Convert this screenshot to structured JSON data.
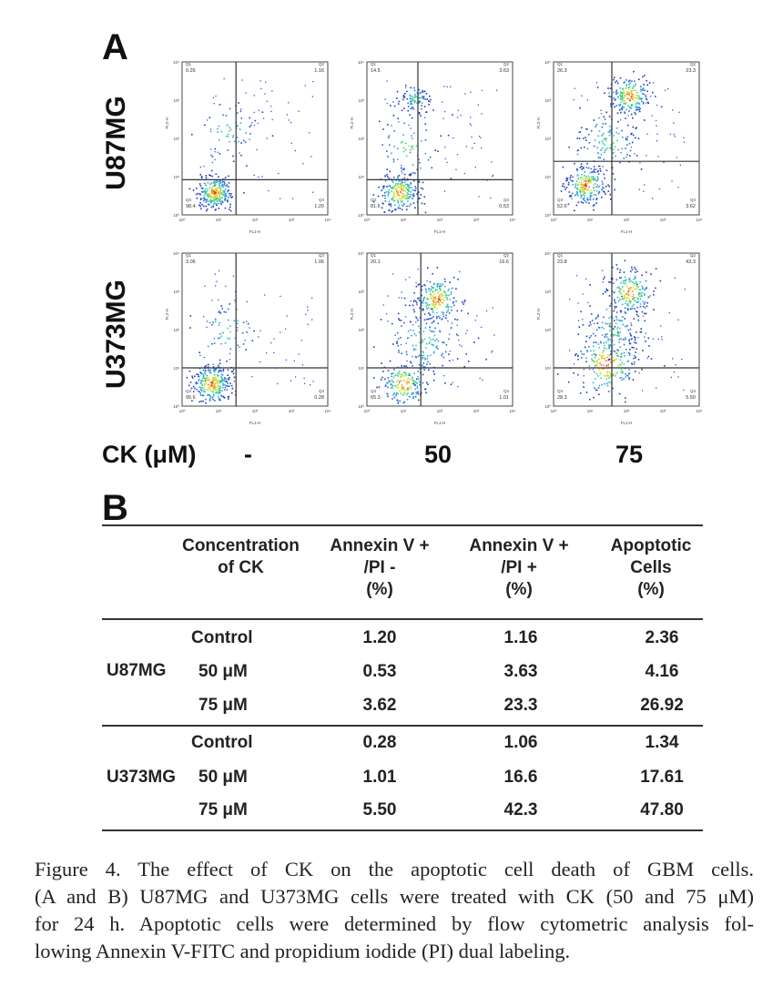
{
  "panel_a": {
    "letter": "A",
    "row_labels": [
      "U87MG",
      "U373MG"
    ],
    "ck_label": "CK (μM)",
    "ck_values": [
      "-",
      "50",
      "75"
    ],
    "x_axis_label": "FL1-H",
    "y_axis_label": "FL2-H",
    "plots": [
      {
        "row": 0,
        "col": 0,
        "q": [
          "0.26",
          "1.16",
          "98.4",
          "1.20"
        ]
      },
      {
        "row": 0,
        "col": 1,
        "q": [
          "14.5",
          "3.63",
          "81.6",
          "0.53"
        ]
      },
      {
        "row": 0,
        "col": 2,
        "q": [
          "26.3",
          "23.3",
          "52.6",
          "3.62"
        ]
      },
      {
        "row": 1,
        "col": 0,
        "q": [
          "3.06",
          "1.06",
          "95.6",
          "0.28"
        ]
      },
      {
        "row": 1,
        "col": 1,
        "q": [
          "20.1",
          "16.6",
          "65.3",
          "1.01"
        ]
      },
      {
        "row": 1,
        "col": 2,
        "q": [
          "23.8",
          "42.3",
          "28.3",
          "5.50"
        ]
      }
    ]
  },
  "panel_b": {
    "letter": "B",
    "headers": {
      "concentration": [
        "Concentration",
        "of CK"
      ],
      "annexin_neg": [
        "Annexin V +",
        "/PI -",
        "(%)"
      ],
      "annexin_pos": [
        "Annexin V +",
        "/PI +",
        "(%)"
      ],
      "apoptotic": [
        "Apoptotic",
        "Cells",
        "(%)"
      ]
    },
    "groups": [
      {
        "cell_line": "U87MG",
        "rows": [
          {
            "conc": "Control",
            "neg": "1.20",
            "pos": "1.16",
            "apop": "2.36"
          },
          {
            "conc": "50 μM",
            "neg": "0.53",
            "pos": "3.63",
            "apop": "4.16"
          },
          {
            "conc": "75 μM",
            "neg": "3.62",
            "pos": "23.3",
            "apop": "26.92"
          }
        ]
      },
      {
        "cell_line": "U373MG",
        "rows": [
          {
            "conc": "Control",
            "neg": "0.28",
            "pos": "1.06",
            "apop": "1.34"
          },
          {
            "conc": "50 μM",
            "neg": "1.01",
            "pos": "16.6",
            "apop": "17.61"
          },
          {
            "conc": "75 μM",
            "neg": "5.50",
            "pos": "42.3",
            "apop": "47.80"
          }
        ]
      }
    ]
  },
  "caption": {
    "lines": [
      "Figure 4. The effect of CK on the apoptotic cell death of GBM cells.",
      "(A and B) U87MG and U373MG cells were treated with CK (50 and 75 μM)",
      "for 24 h. Apoptotic cells were determined by flow cytometric analysis fol-",
      "lowing Annexin V-FITC and propidium iodide (PI) dual labeling."
    ]
  }
}
